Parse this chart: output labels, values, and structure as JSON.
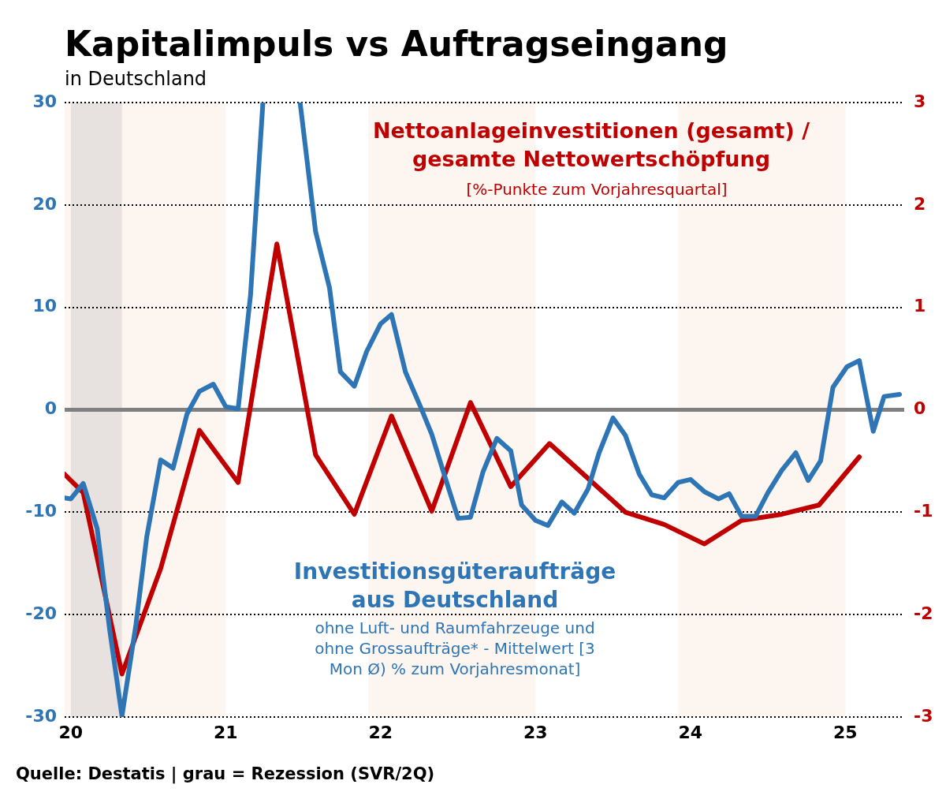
{
  "chart_data": {
    "type": "line",
    "title": "Kapitalimpuls vs Auftragseingang",
    "subtitle": "in Deutschland",
    "xlim": [
      19.96,
      25.38
    ],
    "xticks": [
      20,
      21,
      22,
      23,
      24,
      25
    ],
    "ylim": [
      -30,
      30
    ],
    "yticks": [
      -30,
      -20,
      -10,
      0,
      10,
      20,
      30
    ],
    "y2lim": [
      -3,
      3
    ],
    "y2ticks": [
      -3,
      -2,
      -1,
      0,
      1,
      2,
      3
    ],
    "grid": "y",
    "legend": false,
    "marker": "none",
    "ref_lines": [
      {
        "axis": "y",
        "value": 0,
        "color": "#808080"
      }
    ],
    "bands": [
      {
        "axis": "x",
        "from": 19.96,
        "to": 21,
        "color": "#fdf5f0"
      },
      {
        "axis": "x",
        "from": 21.92,
        "to": 23,
        "color": "#fdf5f0"
      },
      {
        "axis": "x",
        "from": 23.92,
        "to": 25,
        "color": "#fdf5f0"
      },
      {
        "axis": "x",
        "from": 20,
        "to": 20.33,
        "color": "#e7e2df"
      }
    ],
    "series": [
      {
        "name": "Investitionsgüteraufträge aus Deutschland",
        "color": "#2e75b6",
        "x": [
          19.96,
          20,
          20.08,
          20.17,
          20.25,
          20.33,
          20.42,
          20.49,
          20.58,
          20.66,
          20.75,
          20.83,
          20.92,
          21,
          21.08,
          21.16,
          21.24,
          21.33,
          21.42,
          21.48,
          21.58,
          21.67,
          21.74,
          21.83,
          21.91,
          22,
          22.07,
          22.16,
          22.26,
          22.33,
          22.41,
          22.5,
          22.58,
          22.66,
          22.75,
          22.84,
          22.91,
          23,
          23.08,
          23.17,
          23.25,
          23.34,
          23.41,
          23.5,
          23.58,
          23.67,
          23.75,
          23.83,
          23.92,
          24,
          24.09,
          24.18,
          24.25,
          24.33,
          24.42,
          24.5,
          24.59,
          24.68,
          24.76,
          24.84,
          24.92,
          25.01,
          25.09,
          25.18,
          25.25,
          25.35
        ],
        "values": [
          -8.6,
          -8.7,
          -7.2,
          -11.6,
          -21.4,
          -29.9,
          -21,
          -12.4,
          -4.9,
          -5.7,
          -0.4,
          1.8,
          2.5,
          0.3,
          0.1,
          11.2,
          30,
          null,
          null,
          30,
          17.4,
          11.9,
          3.7,
          2.3,
          5.7,
          8.4,
          9.3,
          3.7,
          0.2,
          -2.4,
          -6.3,
          -10.6,
          -10.5,
          -6.1,
          -2.8,
          -4,
          -9.3,
          -10.8,
          -11.3,
          -9,
          -10.1,
          -7.7,
          -4.2,
          -0.8,
          -2.5,
          -6.3,
          -8.3,
          -8.6,
          -7.1,
          -6.8,
          -8,
          -8.7,
          -8.2,
          -10.4,
          -10.4,
          -8.1,
          -5.9,
          -4.2,
          -6.9,
          -5,
          2.2,
          4.2,
          4.8,
          -2.1,
          1.3,
          1.5
        ]
      },
      {
        "name": "Nettoanlageinvestitionen (gesamt) / gesamte Nettowertschöpfung",
        "color": "#c00000",
        "axis": "y2",
        "x": [
          19.96,
          20.08,
          20.33,
          20.58,
          20.83,
          21.08,
          21.33,
          21.58,
          21.83,
          22.07,
          22.33,
          22.58,
          22.84,
          23.09,
          23.58,
          23.83,
          24.09,
          24.33,
          24.59,
          24.83,
          25.09
        ],
        "values": [
          -0.63,
          -0.81,
          -2.58,
          -1.55,
          -0.2,
          -0.71,
          1.62,
          -0.44,
          -1.02,
          -0.06,
          -0.99,
          0.07,
          -0.75,
          -0.33,
          -1,
          -1.12,
          -1.31,
          -1.08,
          -1.02,
          -0.93,
          -0.46
        ]
      }
    ],
    "annotations": [
      "ohne Luft- und Raumfahrzeuge und ohne Grossaufträge* - Mittelwert [3 Mon Ø) % zum Vorjahresmonat]",
      "[%-Punkte zum Vorjahresquartal]",
      "Quelle: Destatis | grau = Rezession (SVR/2Q)"
    ]
  }
}
